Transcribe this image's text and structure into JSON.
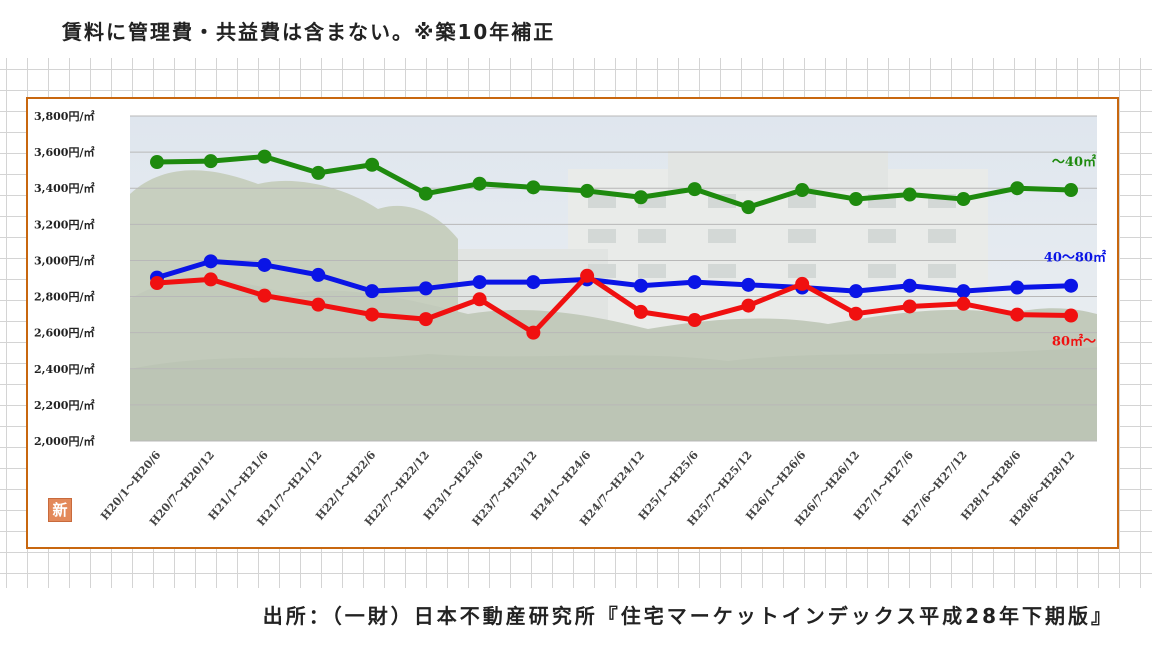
{
  "caption": "賃料に管理費・共益費は含まない。※築10年補正",
  "source": "出所：（一財）日本不動産研究所『住宅マーケットインデックス平成28年下期版』",
  "badge": "新",
  "colors": {
    "frame": "#c8670f",
    "small": "#1e8a0e",
    "medium": "#0a14e6",
    "large": "#f01010"
  },
  "chart_data": {
    "type": "line",
    "x": [
      "H20/1～H20/6",
      "H20/7～H20/12",
      "H21/1～H21/6",
      "H21/7～H21/12",
      "H22/1～H22/6",
      "H22/7～H22/12",
      "H23/1～H23/6",
      "H23/7～H23/12",
      "H24/1～H24/6",
      "H24/7～H24/12",
      "H25/1～H25/6",
      "H25/7～H25/12",
      "H26/1～H26/6",
      "H26/7～H26/12",
      "H27/1～H27/6",
      "H27/6～H27/12",
      "H28/1～H28/6",
      "H28/6～H28/12"
    ],
    "y_ticks": [
      "3,800円/㎡",
      "3,600円/㎡",
      "3,400円/㎡",
      "3,200円/㎡",
      "3,000円/㎡",
      "2,800円/㎡",
      "2,600円/㎡",
      "2,400円/㎡",
      "2,200円/㎡",
      "2,000円/㎡"
    ],
    "ylim": [
      2000,
      3800
    ],
    "grid": true,
    "background": "photo of apartment building and trees (faded)",
    "series": [
      {
        "name": "～40㎡",
        "color": "#1e8a0e",
        "values": [
          3545,
          3550,
          3575,
          3485,
          3530,
          3370,
          3425,
          3405,
          3385,
          3350,
          3395,
          3295,
          3390,
          3340,
          3365,
          3340,
          3400,
          3390
        ]
      },
      {
        "name": "40～80㎡",
        "color": "#0a14e6",
        "values": [
          2905,
          2995,
          2975,
          2920,
          2830,
          2845,
          2880,
          2880,
          2895,
          2860,
          2880,
          2865,
          2850,
          2830,
          2860,
          2830,
          2850,
          2860
        ]
      },
      {
        "name": "80㎡～",
        "color": "#f01010",
        "values": [
          2875,
          2895,
          2805,
          2755,
          2700,
          2675,
          2785,
          2600,
          2915,
          2715,
          2670,
          2750,
          2870,
          2705,
          2745,
          2760,
          2700,
          2695
        ]
      }
    ]
  }
}
